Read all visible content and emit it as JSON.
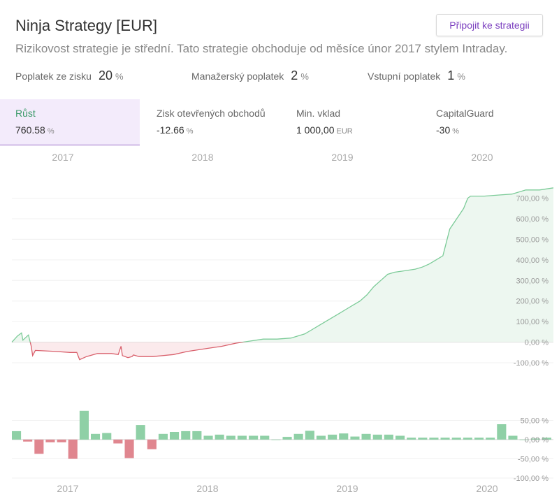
{
  "header": {
    "title": "Ninja Strategy [EUR]",
    "join_label": "Připojit ke strategii",
    "subtitle": "Rizikovost strategie je střední. Tato strategie obchoduje od měsíce únor 2017 stylem Intraday."
  },
  "fees": [
    {
      "label": "Poplatek ze zisku",
      "value": "20",
      "unit": "%"
    },
    {
      "label": "Manažerský poplatek",
      "value": "2",
      "unit": "%"
    },
    {
      "label": "Vstupní poplatek",
      "value": "1",
      "unit": "%"
    }
  ],
  "stats": [
    {
      "label": "Růst",
      "value": "760.58",
      "unit": "%"
    },
    {
      "label": "Zisk otevřených obchodů",
      "value": "-12.66",
      "unit": "%"
    },
    {
      "label": "Min. vklad",
      "value": "1 000,00",
      "unit": "EUR"
    },
    {
      "label": "CapitalGuard",
      "value": "-30",
      "unit": "%"
    }
  ],
  "colors": {
    "accent": "#7b3fbf",
    "positive": "#8fd0a6",
    "positive_line": "#7ccb98",
    "negative": "#e0868f",
    "negative_line": "#d9606c",
    "positive_fill": "#edf7f0",
    "negative_fill": "#fbeaec"
  },
  "chart_data": [
    {
      "type": "area",
      "x_axis_labels": [
        "2017",
        "2018",
        "2019",
        "2020"
      ],
      "y_tick_labels": [
        "700,00 %",
        "600,00 %",
        "500,00 %",
        "400,00 %",
        "300,00 %",
        "200,00 %",
        "100,00 %",
        "0,00 %",
        "-100,00 %"
      ],
      "y_ticks": [
        700,
        600,
        500,
        400,
        300,
        200,
        100,
        0,
        -100
      ],
      "ylim": [
        -110,
        780
      ],
      "xlim": [
        2016.58,
        2020.5
      ],
      "x": [
        2016.58,
        2016.62,
        2016.65,
        2016.66,
        2016.7,
        2016.72,
        2016.73,
        2016.75,
        2016.9,
        2017.0,
        2017.05,
        2017.07,
        2017.12,
        2017.2,
        2017.3,
        2017.35,
        2017.37,
        2017.38,
        2017.42,
        2017.45,
        2017.46,
        2017.5,
        2017.6,
        2017.75,
        2017.85,
        2018.0,
        2018.1,
        2018.2,
        2018.3,
        2018.4,
        2018.5,
        2018.6,
        2018.7,
        2018.75,
        2018.8,
        2018.85,
        2018.9,
        2018.95,
        2019.0,
        2019.05,
        2019.1,
        2019.15,
        2019.2,
        2019.25,
        2019.3,
        2019.35,
        2019.4,
        2019.45,
        2019.5,
        2019.55,
        2019.6,
        2019.65,
        2019.7,
        2019.75,
        2019.8,
        2019.85,
        2019.88,
        2019.9,
        2019.92,
        2019.94,
        2019.96,
        2019.98,
        2020.0,
        2020.1,
        2020.2,
        2020.3,
        2020.4,
        2020.5
      ],
      "y": [
        0,
        30,
        45,
        10,
        35,
        -20,
        -65,
        -40,
        -45,
        -50,
        -50,
        -85,
        -70,
        -55,
        -55,
        -60,
        -20,
        -65,
        -75,
        -70,
        -62,
        -70,
        -70,
        -60,
        -45,
        -30,
        -20,
        -5,
        5,
        15,
        15,
        20,
        40,
        60,
        80,
        100,
        120,
        140,
        160,
        180,
        200,
        230,
        270,
        300,
        330,
        340,
        345,
        350,
        355,
        365,
        380,
        400,
        420,
        550,
        600,
        650,
        700,
        710,
        710,
        710,
        710,
        710,
        710,
        715,
        720,
        740,
        740,
        750
      ]
    },
    {
      "type": "bar",
      "y_tick_labels": [
        "50,00 %",
        "0,00 %",
        "-50,00 %",
        "-100,00 %"
      ],
      "y_ticks": [
        50,
        0,
        -50,
        -100
      ],
      "ylim": [
        -100,
        100
      ],
      "values": [
        22,
        -5,
        -37,
        -7,
        -7,
        -50,
        75,
        15,
        17,
        -10,
        -48,
        38,
        -25,
        15,
        20,
        22,
        22,
        10,
        13,
        10,
        10,
        10,
        10,
        0,
        7,
        15,
        23,
        10,
        13,
        16,
        8,
        15,
        13,
        13,
        10,
        5,
        5,
        5,
        5,
        5,
        5,
        5,
        5,
        40,
        10,
        0,
        3,
        5
      ]
    }
  ]
}
